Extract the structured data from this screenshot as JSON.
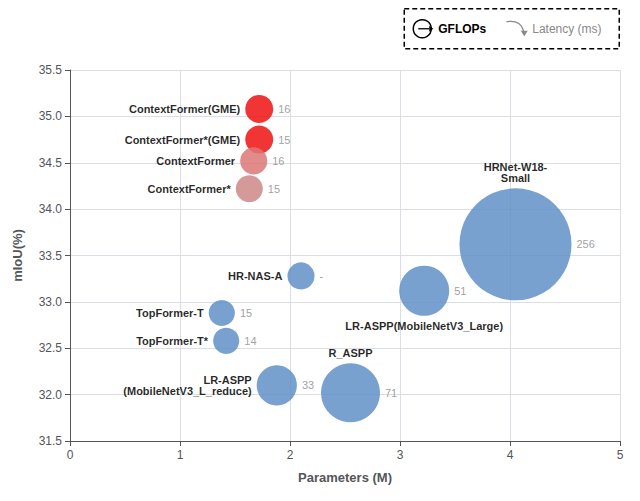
{
  "chart_data": {
    "type": "scatter",
    "xlabel": "Parameters (M)",
    "ylabel": "mIoU(%)",
    "point_labels": [
      "ContextFormer(GME)",
      "ContextFormer*(GME)",
      "ContextFormer",
      "ContextFormer*",
      "TopFormer-T",
      "TopFormer-T*",
      "HR-NAS-A",
      "LR-ASPP\n(MobileNetV3_L_reduce)",
      "R_ASPP",
      "LR-ASPP(MobileNetV3_Large)",
      "HRNet-W18-\nSmall"
    ],
    "x": [
      1.72,
      1.72,
      1.67,
      1.63,
      1.38,
      1.42,
      2.1,
      1.88,
      2.55,
      3.22,
      4.05
    ],
    "values": [
      35.08,
      34.75,
      34.52,
      34.22,
      32.88,
      32.58,
      33.28,
      32.1,
      32.02,
      33.12,
      33.62
    ],
    "gflops": [
      16,
      16,
      15,
      15,
      14,
      14,
      15,
      33,
      71,
      51,
      256
    ],
    "latency": [
      16,
      15,
      16,
      15,
      15,
      14,
      null,
      33,
      71,
      51,
      256
    ],
    "latency_labels": [
      "16",
      "15",
      "16",
      "15",
      "15",
      "14",
      "-",
      "33",
      "71",
      "51",
      "256"
    ],
    "colors": [
      "#ee1111",
      "#ee1111",
      "#dd7777",
      "#cc8888",
      "#6090c8",
      "#6090c8",
      "#6090c8",
      "#6090c8",
      "#6090c8",
      "#6090c8",
      "#6090c8"
    ],
    "xlim": [
      0,
      5.0
    ],
    "ylim": [
      31.5,
      35.5
    ],
    "xticks": [
      0,
      1,
      2,
      3,
      4,
      5
    ],
    "yticks": [
      31.5,
      {
        "value": 32.0,
        "label": "32.0"
      },
      32.5,
      {
        "value": 33.0,
        "label": "33.0"
      },
      33.5,
      {
        "value": 34.0,
        "label": "34.0"
      },
      34.5,
      {
        "value": 35.0,
        "label": "35.0"
      },
      35.5
    ],
    "grid": true,
    "legend": "upper right",
    "annotations": [
      "GFLOPs",
      "Latency (ms)"
    ]
  }
}
